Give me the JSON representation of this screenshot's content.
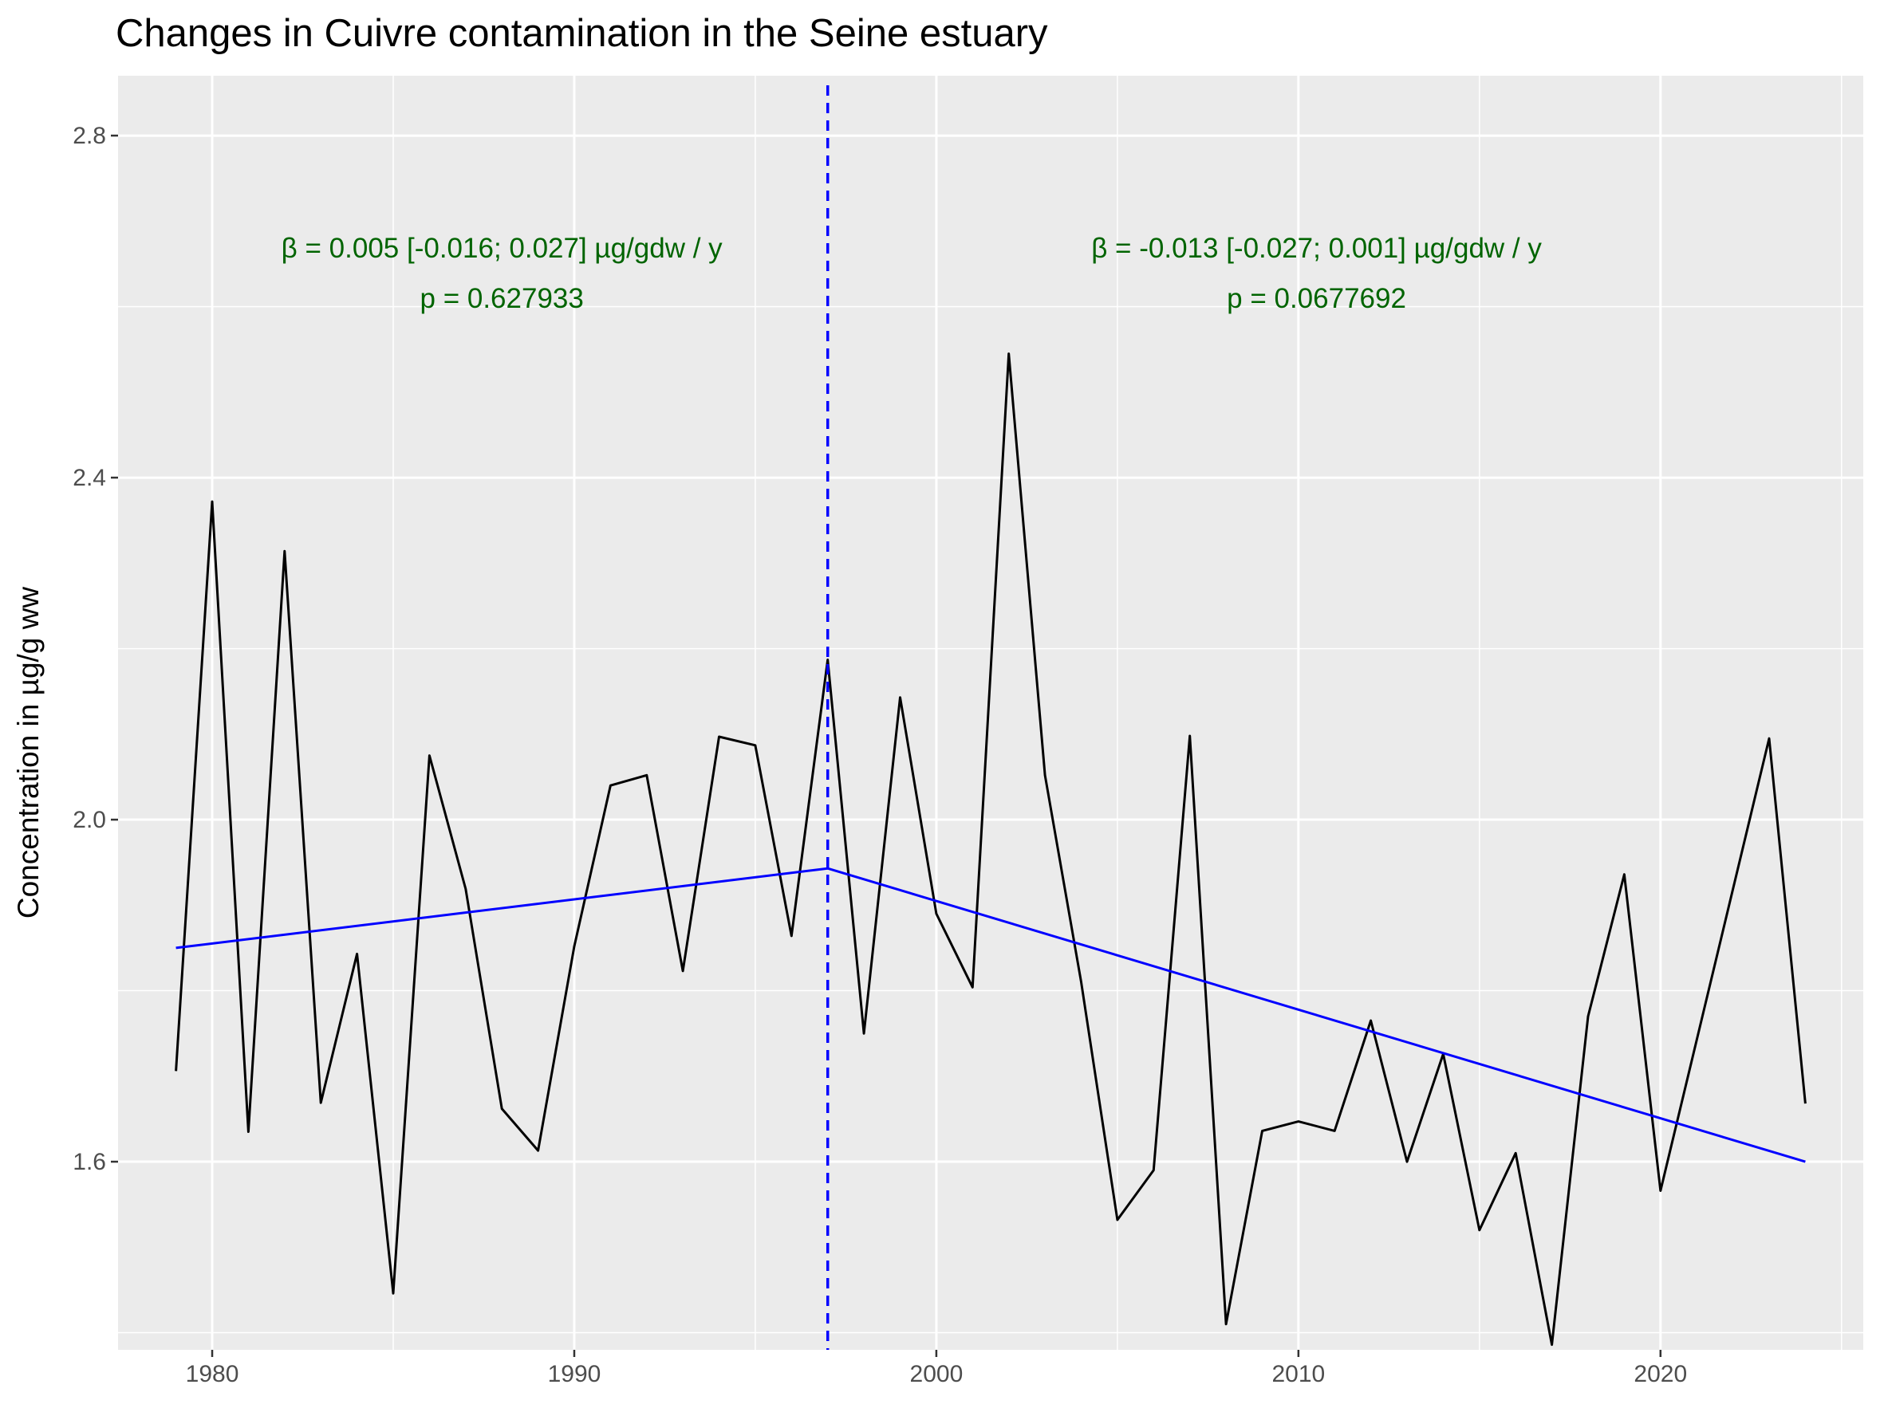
{
  "chart_data": {
    "type": "line",
    "title": "Changes in Cuivre contamination in the Seine estuary",
    "xlabel": "",
    "ylabel": "Concentration in µg/g ww",
    "xlim": [
      1977.4,
      2025.6
    ],
    "ylim": [
      1.38,
      2.87
    ],
    "x_ticks": [
      1980,
      1990,
      2000,
      2010,
      2020
    ],
    "y_ticks": [
      1.6,
      2.0,
      2.4,
      2.8
    ],
    "grid": true,
    "background": "#ebebeb",
    "series": [
      {
        "color": "#000000",
        "x": [
          1979,
          1980,
          1981,
          1982,
          1983,
          1984,
          1985,
          1986,
          1987,
          1988,
          1989,
          1990,
          1991,
          1992,
          1993,
          1994,
          1995,
          1996,
          1997,
          1998,
          1999,
          2000,
          2001,
          2002,
          2003,
          2004,
          2005,
          2006,
          2007,
          2008,
          2009,
          2010,
          2011,
          2012,
          2013,
          2014,
          2015,
          2016,
          2017,
          2018,
          2019,
          2020,
          2023,
          2024
        ],
        "y": [
          1.706,
          2.372,
          1.635,
          2.314,
          1.669,
          1.843,
          1.446,
          2.075,
          1.919,
          1.662,
          1.613,
          1.852,
          2.04,
          2.052,
          1.823,
          2.097,
          2.087,
          1.864,
          2.187,
          1.75,
          2.143,
          1.89,
          1.804,
          2.545,
          2.052,
          1.81,
          1.532,
          1.59,
          2.098,
          1.41,
          1.636,
          1.647,
          1.636,
          1.765,
          1.6,
          1.726,
          1.52,
          1.61,
          1.386,
          1.77,
          1.936,
          1.566,
          2.095,
          1.668
        ]
      },
      {
        "color": "#0000ff",
        "x": [
          1979,
          1997,
          2024
        ],
        "y": [
          1.85,
          1.943,
          1.6
        ]
      }
    ],
    "breakpoint": {
      "x": 1997,
      "color": "#0000ff",
      "style": "dashed"
    },
    "annotations": [
      {
        "line1": "β = 0.005 [-0.016; 0.027] µg/gdw / y",
        "line2": "p = 0.627933",
        "x": 1988,
        "y": 2.65,
        "color": "#006400"
      },
      {
        "line1": "β = -0.013 [-0.027; 0.001] µg/gdw / y",
        "line2": "p = 0.0677692",
        "x": 2010.5,
        "y": 2.65,
        "color": "#006400"
      }
    ]
  }
}
